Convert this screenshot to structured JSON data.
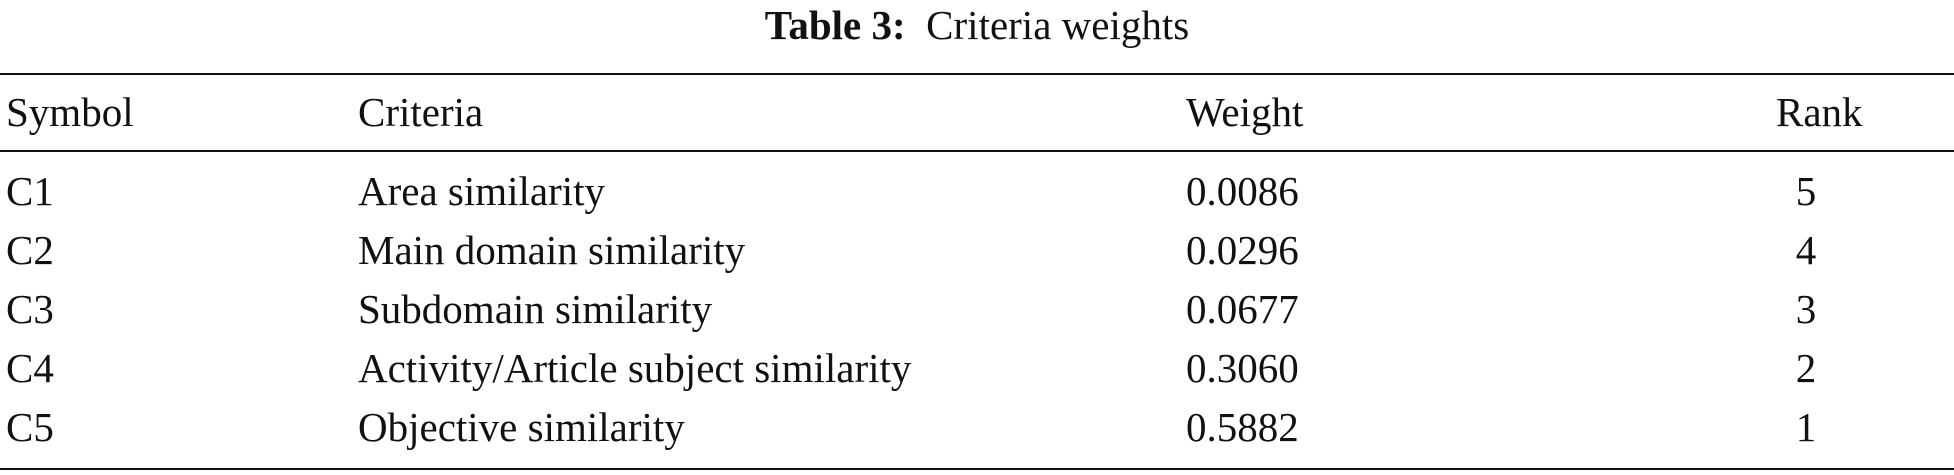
{
  "table": {
    "caption_label": "Table 3:",
    "caption_text": "Criteria weights",
    "headers": {
      "symbol": "Symbol",
      "criteria": "Criteria",
      "weight": "Weight",
      "rank": "Rank"
    },
    "rows": [
      {
        "symbol": "C1",
        "criteria": "Area similarity",
        "weight": "0.0086",
        "rank": "5"
      },
      {
        "symbol": "C2",
        "criteria": "Main domain similarity",
        "weight": "0.0296",
        "rank": "4"
      },
      {
        "symbol": "C3",
        "criteria": "Subdomain similarity",
        "weight": "0.0677",
        "rank": "3"
      },
      {
        "symbol": "C4",
        "criteria": "Activity/Article subject similarity",
        "weight": "0.3060",
        "rank": "2"
      },
      {
        "symbol": "C5",
        "criteria": "Objective similarity",
        "weight": "0.5882",
        "rank": "1"
      }
    ]
  }
}
